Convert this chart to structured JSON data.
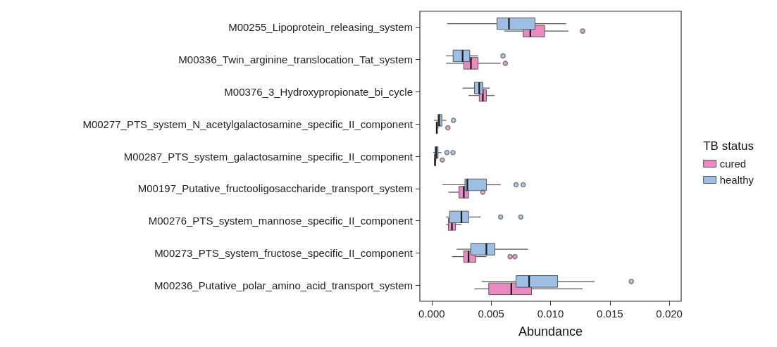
{
  "chart_data": {
    "type": "box",
    "xlabel": "Abundance",
    "legend_title": "TB status",
    "orientation": "horizontal",
    "legend": "right",
    "grid": false,
    "categories": [
      "M00255_Lipoprotein_releasing_system",
      "M00336_Twin_arginine_translocation_Tat_system",
      "M00376_3_Hydroxypropionate_bi_cycle",
      "M00277_PTS_system_N_acetylgalactosamine_specific_II_component",
      "M00287_PTS_system_galactosamine_specific_II_component",
      "M00197_Putative_fructooligosaccharide_transport_system",
      "M00276_PTS_system_mannose_specific_II_component",
      "M00273_PTS_system_fructose_specific_II_component",
      "M00236_Putative_polar_amino_acid_transport_system"
    ],
    "xlim": [
      -0.001,
      0.021
    ],
    "xticks": [
      {
        "value": 0,
        "label": "0.000"
      },
      {
        "value": 0.005,
        "label": "0.005"
      },
      {
        "value": 0.01,
        "label": "0.010"
      },
      {
        "value": 0.015,
        "label": "0.015"
      },
      {
        "value": 0.02,
        "label": "0.020"
      }
    ],
    "series": [
      {
        "name": "cured",
        "color": "#ea8ac1",
        "boxes": [
          {
            "low": 0.0061,
            "q1": 0.0077,
            "median": 0.0083,
            "q3": 0.0095,
            "high": 0.0115,
            "outliers": [
              0.0127
            ]
          },
          {
            "low": 0.0012,
            "q1": 0.0027,
            "median": 0.0033,
            "q3": 0.0039,
            "high": 0.0058,
            "outliers": [
              0.0062
            ]
          },
          {
            "low": 0.0031,
            "q1": 0.004,
            "median": 0.0043,
            "q3": 0.0046,
            "high": 0.0053
          },
          {
            "low": 0.00038,
            "q1": 0.0004,
            "median": 0.00042,
            "q3": 0.00048,
            "high": 0.00058,
            "outliers": [
              0.00136
            ]
          },
          {
            "low": 0.0002,
            "q1": 0.00024,
            "median": 0.00028,
            "q3": 0.00032,
            "high": 0.00041,
            "outliers": [
              0.00089
            ]
          },
          {
            "low": 0.0014,
            "q1": 0.0023,
            "median": 0.0027,
            "q3": 0.0031,
            "high": 0.0031,
            "outliers": [
              0.0043
            ]
          },
          {
            "low": 0.0012,
            "q1": 0.0014,
            "median": 0.0017,
            "q3": 0.002,
            "high": 0.0025
          },
          {
            "low": 0.0017,
            "q1": 0.0027,
            "median": 0.0031,
            "q3": 0.0037,
            "high": 0.0046,
            "outliers": [
              0.0066,
              0.007
            ]
          },
          {
            "low": 0.0036,
            "q1": 0.0048,
            "median": 0.0067,
            "q3": 0.0084,
            "high": 0.0127
          }
        ]
      },
      {
        "name": "healthy",
        "color": "#9dbfe3",
        "boxes": [
          {
            "low": 0.0013,
            "q1": 0.0055,
            "median": 0.0065,
            "q3": 0.0087,
            "high": 0.0113
          },
          {
            "low": 0.0012,
            "q1": 0.0018,
            "median": 0.0026,
            "q3": 0.0032,
            "high": 0.0039,
            "outliers": [
              0.006
            ]
          },
          {
            "low": 0.0026,
            "q1": 0.0036,
            "median": 0.004,
            "q3": 0.0043,
            "high": 0.0049
          },
          {
            "low": 0.00019,
            "q1": 0.00053,
            "median": 0.00062,
            "q3": 0.00085,
            "high": 0.00123,
            "outliers": [
              0.00183
            ]
          },
          {
            "low": 0.00013,
            "q1": 0.00028,
            "median": 0.00038,
            "q3": 0.00053,
            "high": 0.00081,
            "outliers": [
              0.00128,
              0.00179
            ]
          },
          {
            "low": 0.0009,
            "q1": 0.0028,
            "median": 0.003,
            "q3": 0.0046,
            "high": 0.0058,
            "outliers": [
              0.0071,
              0.0077
            ]
          },
          {
            "low": 0.0012,
            "q1": 0.0015,
            "median": 0.0025,
            "q3": 0.0031,
            "high": 0.0041,
            "outliers": [
              0.0058,
              0.0075
            ]
          },
          {
            "low": 0.0021,
            "q1": 0.0033,
            "median": 0.0046,
            "q3": 0.0053,
            "high": 0.0081
          },
          {
            "low": 0.0042,
            "q1": 0.0071,
            "median": 0.0082,
            "q3": 0.0106,
            "high": 0.0137,
            "outliers": [
              0.0168
            ]
          }
        ]
      }
    ]
  }
}
